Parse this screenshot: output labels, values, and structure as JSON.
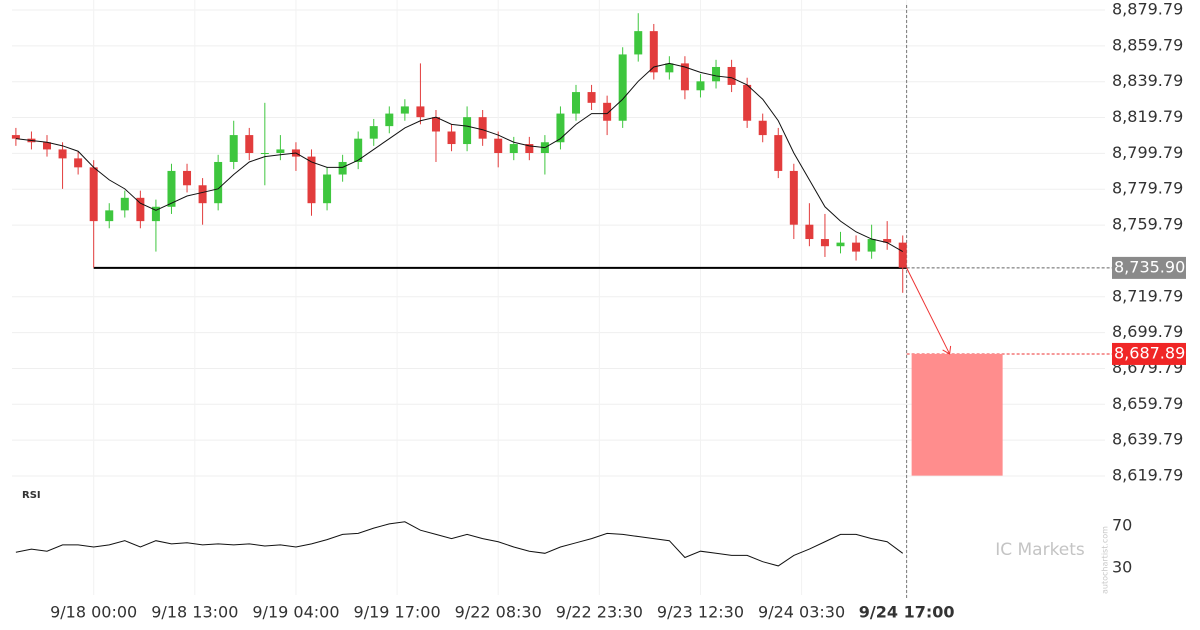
{
  "chart_data": [
    {
      "type": "candlestick",
      "x": [
        -10,
        -8,
        -6,
        -4,
        -2,
        0,
        2,
        4,
        6,
        8,
        10,
        12,
        14,
        16,
        18,
        20,
        22,
        24,
        26,
        28,
        30,
        32,
        34,
        36,
        38,
        40,
        42,
        44,
        46,
        48,
        50,
        52,
        54,
        56,
        58,
        60,
        62,
        64,
        66,
        68,
        70,
        72,
        74,
        76,
        78,
        80,
        82,
        84,
        86,
        88,
        90,
        92,
        94,
        96,
        98,
        100,
        102,
        104
      ],
      "open": [
        8810,
        8808,
        8806,
        8802,
        8797,
        8792,
        8762,
        8768,
        8775,
        8762,
        8770,
        8790,
        8782,
        8772,
        8795,
        8810,
        8800,
        8800,
        8802,
        8798,
        8772,
        8788,
        8795,
        8808,
        8815,
        8822,
        8826,
        8820,
        8812,
        8805,
        8820,
        8808,
        8800,
        8805,
        8800,
        8806,
        8822,
        8834,
        8828,
        8818,
        8855,
        8868,
        8845,
        8850,
        8835,
        8840,
        8848,
        8838,
        8818,
        8810,
        8790,
        8760,
        8752,
        8748,
        8750,
        8745,
        8752,
        8750
      ],
      "high": [
        8814,
        8812,
        8810,
        8806,
        8801,
        8796,
        8772,
        8779,
        8779,
        8774,
        8794,
        8794,
        8786,
        8799,
        8818,
        8814,
        8828,
        8810,
        8806,
        8802,
        8792,
        8799,
        8812,
        8819,
        8826,
        8830,
        8850,
        8824,
        8816,
        8826,
        8824,
        8812,
        8809,
        8809,
        8810,
        8826,
        8838,
        8838,
        8832,
        8859,
        8878,
        8872,
        8854,
        8854,
        8844,
        8852,
        8852,
        8842,
        8822,
        8814,
        8794,
        8772,
        8766,
        8756,
        8754,
        8760,
        8762,
        8754
      ],
      "low": [
        8804,
        8802,
        8798,
        8780,
        8788,
        8736,
        8758,
        8764,
        8758,
        8745,
        8766,
        8778,
        8760,
        8768,
        8791,
        8796,
        8782,
        8796,
        8790,
        8765,
        8768,
        8784,
        8791,
        8804,
        8811,
        8818,
        8816,
        8795,
        8801,
        8801,
        8804,
        8792,
        8796,
        8796,
        8788,
        8802,
        8818,
        8824,
        8810,
        8814,
        8851,
        8841,
        8841,
        8830,
        8831,
        8836,
        8834,
        8814,
        8806,
        8786,
        8752,
        8748,
        8742,
        8744,
        8740,
        8741,
        8746,
        8722
      ],
      "close": [
        8808,
        8806,
        8802,
        8797,
        8792,
        8762,
        8768,
        8775,
        8762,
        8770,
        8790,
        8782,
        8772,
        8795,
        8810,
        8800,
        8800,
        8802,
        8798,
        8772,
        8788,
        8795,
        8808,
        8815,
        8822,
        8826,
        8820,
        8812,
        8805,
        8820,
        8808,
        8800,
        8805,
        8800,
        8806,
        8822,
        8834,
        8828,
        8818,
        8855,
        8868,
        8845,
        8850,
        8835,
        8840,
        8848,
        8838,
        8818,
        8810,
        8790,
        8760,
        8752,
        8748,
        8750,
        8745,
        8752,
        8750,
        8736
      ],
      "ma": [
        8808,
        8807,
        8806,
        8804,
        8801,
        8792,
        8785,
        8780,
        8772,
        8768,
        8772,
        8776,
        8778,
        8780,
        8788,
        8795,
        8798,
        8799,
        8800,
        8795,
        8792,
        8792,
        8796,
        8802,
        8808,
        8814,
        8818,
        8820,
        8816,
        8815,
        8813,
        8810,
        8806,
        8804,
        8803,
        8808,
        8816,
        8822,
        8822,
        8830,
        8840,
        8848,
        8850,
        8848,
        8845,
        8843,
        8842,
        8838,
        8830,
        8818,
        8800,
        8785,
        8770,
        8762,
        8756,
        8752,
        8750,
        8745
      ],
      "up_color": "#3ec63e",
      "down_color": "#e23c3c",
      "xlim": [
        -10.5,
        130
      ],
      "ylim": [
        8619.79,
        8879.79
      ],
      "yticks": [
        {
          "value": 8879.79,
          "label": "8,879.79"
        },
        {
          "value": 8859.79,
          "label": "8,859.79"
        },
        {
          "value": 8839.79,
          "label": "8,839.79"
        },
        {
          "value": 8819.79,
          "label": "8,819.79"
        },
        {
          "value": 8799.79,
          "label": "8,799.79"
        },
        {
          "value": 8779.79,
          "label": "8,779.79"
        },
        {
          "value": 8759.79,
          "label": "8,759.79"
        },
        {
          "value": 8719.79,
          "label": "8,719.79"
        },
        {
          "value": 8699.79,
          "label": "8,699.79"
        },
        {
          "value": 8679.79,
          "label": "8,679.79"
        },
        {
          "value": 8659.79,
          "label": "8,659.79"
        },
        {
          "value": 8639.79,
          "label": "8,639.79"
        },
        {
          "value": 8619.79,
          "label": "8,619.79"
        }
      ],
      "grid": true,
      "support": {
        "value": 8735.9,
        "label": "8,735.90",
        "x": [
          0,
          104.5
        ]
      },
      "target": {
        "value": 8687.89,
        "label": "8,687.89",
        "low": 8620
      }
    },
    {
      "type": "line",
      "title": "RSI",
      "values": [
        45,
        48,
        46,
        52,
        52,
        50,
        52,
        56,
        50,
        56,
        53,
        54,
        52,
        53,
        52,
        53,
        51,
        52,
        50,
        53,
        57,
        62,
        63,
        68,
        72,
        74,
        66,
        62,
        58,
        62,
        58,
        55,
        50,
        46,
        44,
        50,
        54,
        58,
        63,
        62,
        60,
        58,
        56,
        40,
        46,
        44,
        42,
        42,
        36,
        32,
        42,
        48,
        55,
        62,
        62,
        58,
        55,
        44
      ],
      "color": "#111111",
      "xlim": [
        -10.5,
        130
      ],
      "ylim": [
        30,
        70
      ],
      "yticks": [
        70,
        30
      ],
      "xticks": [
        {
          "value": 0,
          "label": "9/18 00:00"
        },
        {
          "value": 13,
          "label": "9/18 13:00"
        },
        {
          "value": 26,
          "label": "9/19 04:00"
        },
        {
          "value": 39,
          "label": "9/19 17:00"
        },
        {
          "value": 52,
          "label": "9/22 08:30"
        },
        {
          "value": 65,
          "label": "9/22 23:30"
        },
        {
          "value": 78,
          "label": "9/23 12:30"
        },
        {
          "value": 91,
          "label": "9/24 03:30"
        },
        {
          "value": 104.5,
          "label": "9/24 17:00"
        }
      ]
    }
  ],
  "watermark": {
    "brand": "IC Markets",
    "source": "autochartist.com"
  }
}
